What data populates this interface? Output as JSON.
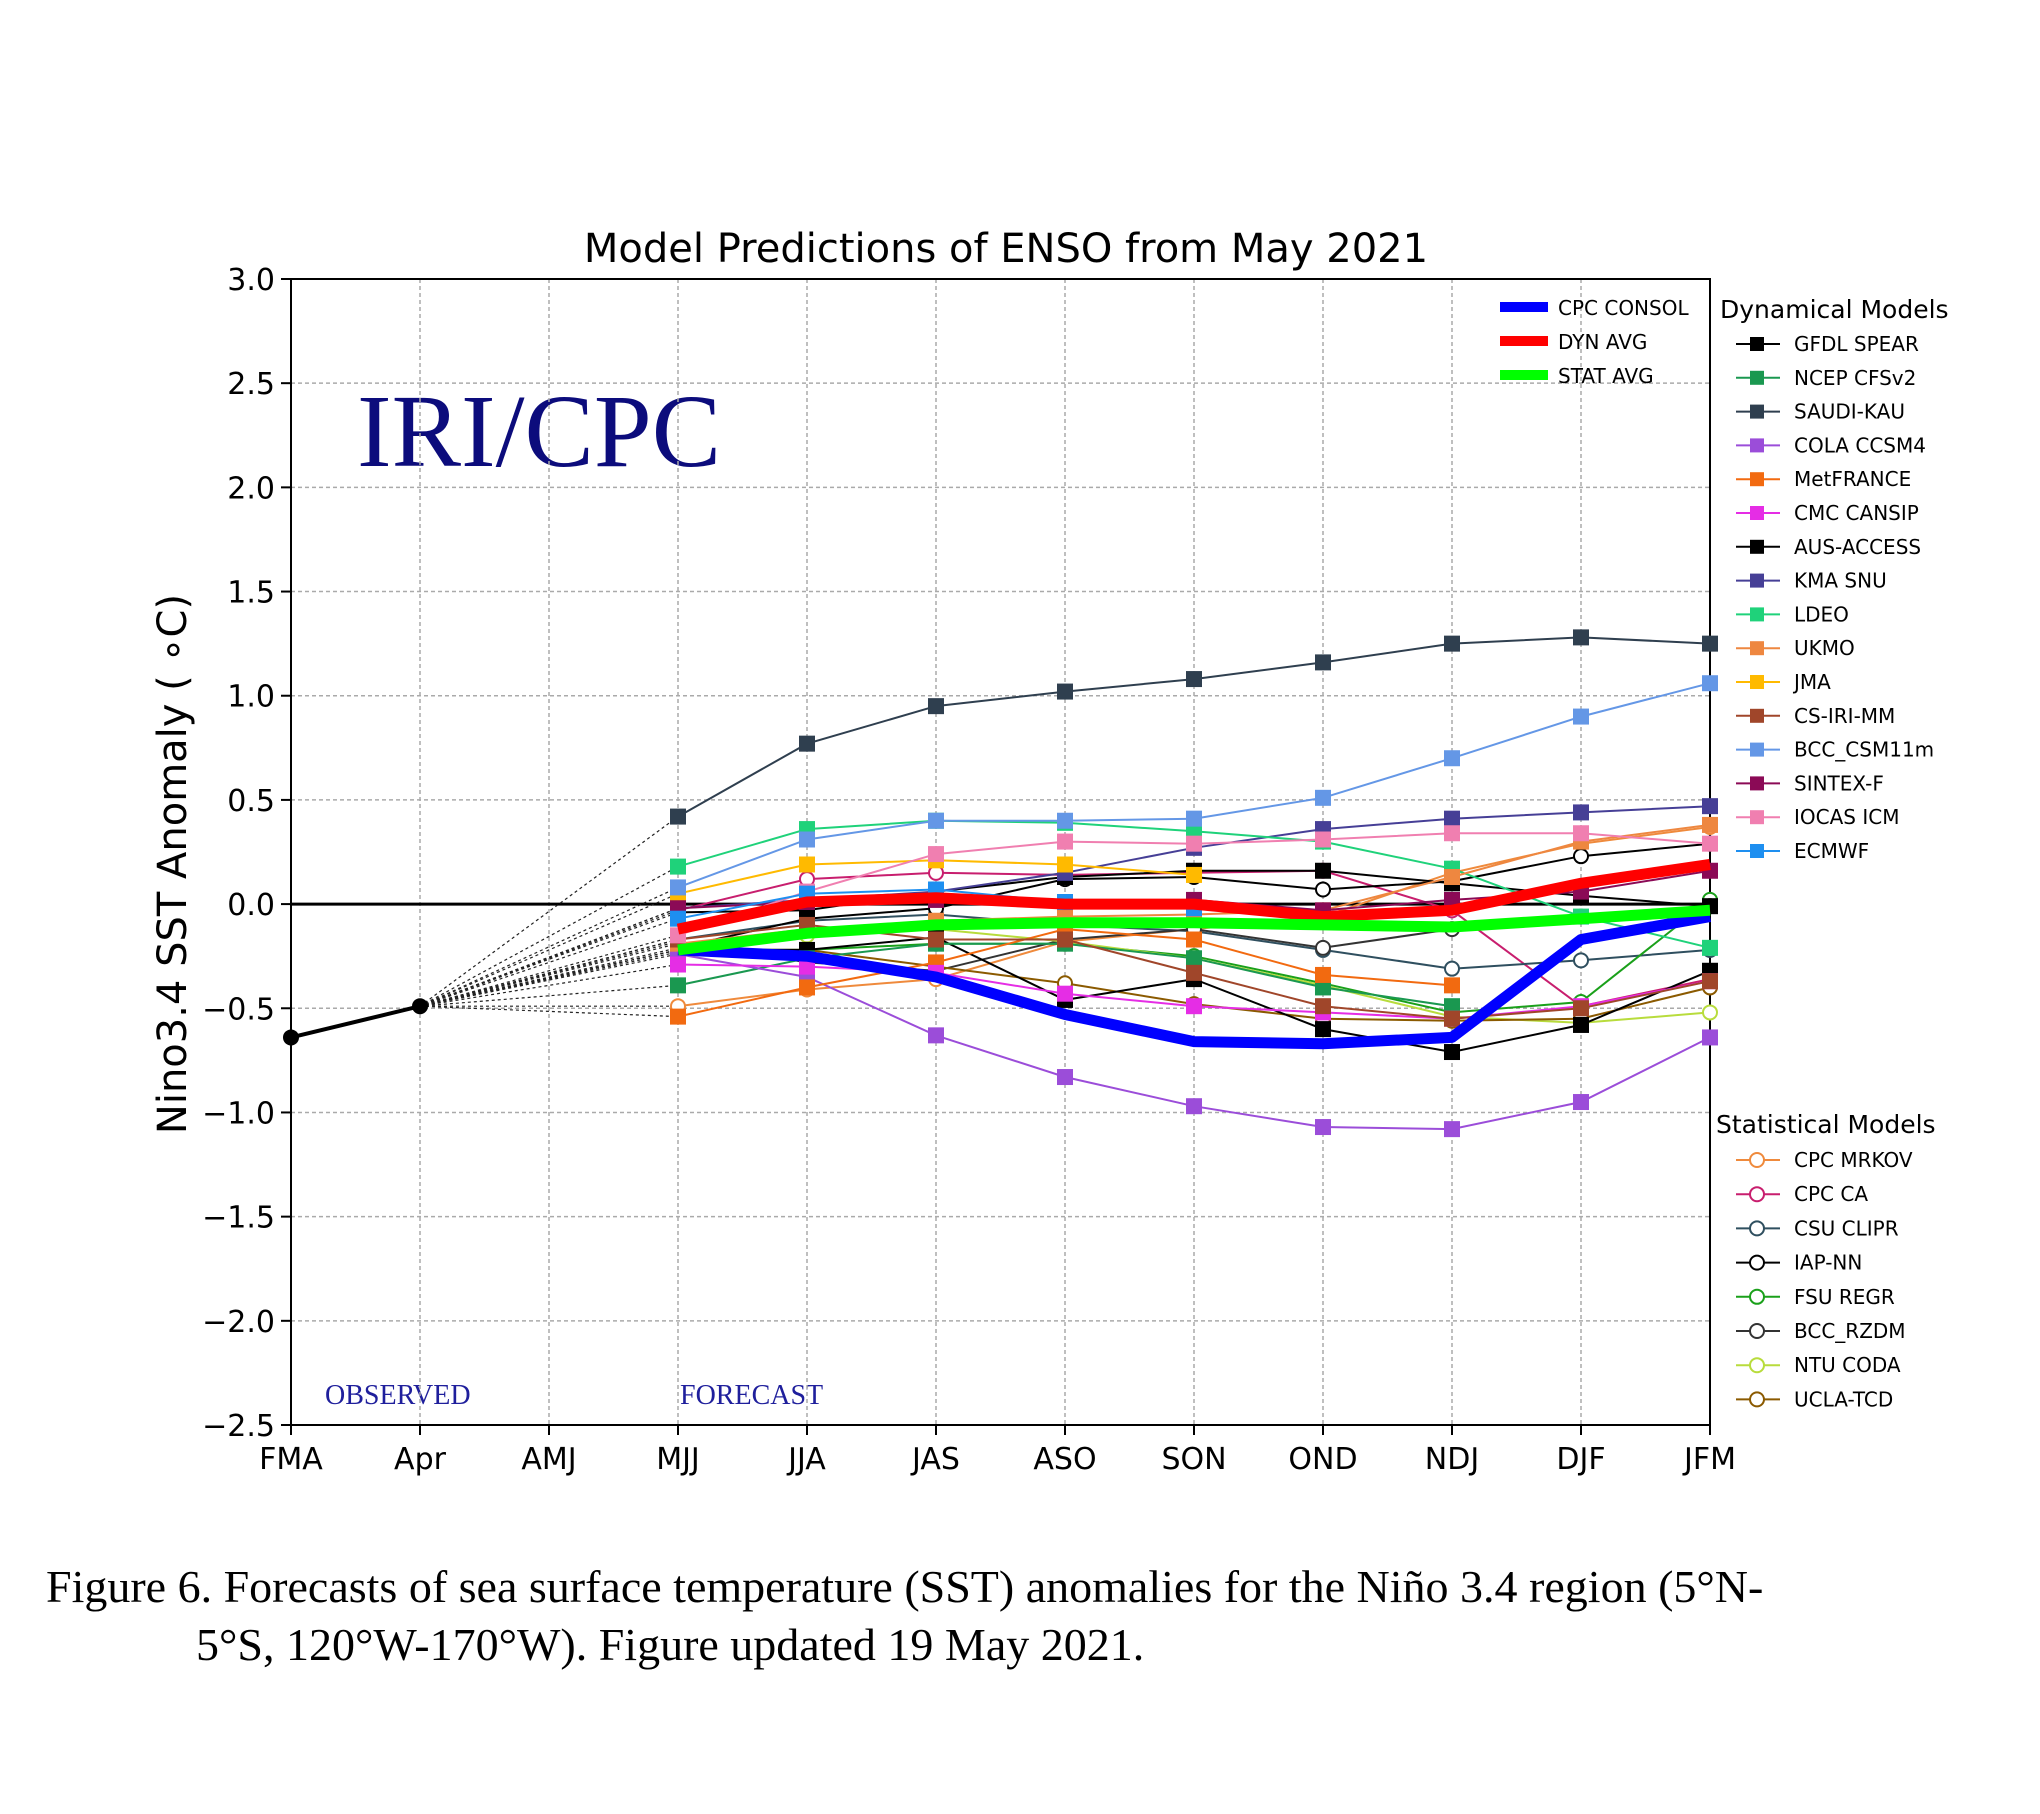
{
  "chart_data": {
    "type": "line",
    "title": "Model Predictions of ENSO from May 2021",
    "ylabel": "Nino3.4 SST Anomaly ( ∘C)",
    "xlabel": "",
    "categories": [
      "FMA",
      "Apr",
      "AMJ",
      "MJJ",
      "JJA",
      "JAS",
      "ASO",
      "SON",
      "OND",
      "NDJ",
      "DJF",
      "JFM"
    ],
    "ylim": [
      -2.5,
      3.0
    ],
    "yticks": [
      3.0,
      2.5,
      2.0,
      1.5,
      1.0,
      0.5,
      0.0,
      -0.5,
      -1.0,
      -1.5,
      -2.0,
      -2.5
    ],
    "ytick_labels": [
      "3.0",
      "2.5",
      "2.0",
      "1.5",
      "1.0",
      "0.5",
      "0.0",
      "−0.5",
      "−1.0",
      "−1.5",
      "−2.0",
      "−2.5"
    ],
    "grid": true,
    "watermark": "IRI/CPC",
    "annotations": {
      "observed": "OBSERVED",
      "forecast": "FORECAST"
    },
    "observed": {
      "categories": [
        "FMA",
        "Apr"
      ],
      "values": [
        -0.64,
        -0.49
      ],
      "color": "#000000"
    },
    "averages": [
      {
        "name": "CPC CONSOL",
        "color": "#0000ff",
        "values": [
          -0.22,
          -0.25,
          -0.35,
          -0.53,
          -0.66,
          -0.67,
          -0.64,
          -0.17,
          -0.06
        ]
      },
      {
        "name": "DYN AVG",
        "color": "#ff0000",
        "values": [
          -0.12,
          0.01,
          0.03,
          0.0,
          0.0,
          -0.06,
          -0.03,
          0.1,
          0.19
        ]
      },
      {
        "name": "STAT AVG",
        "color": "#00ff00",
        "values": [
          -0.22,
          -0.14,
          -0.1,
          -0.09,
          -0.09,
          -0.1,
          -0.11,
          -0.07,
          -0.03
        ]
      }
    ],
    "dynamical_title": "Dynamical Models",
    "statistical_title": "Statistical Models",
    "dynamical": [
      {
        "name": "GFDL SPEAR",
        "color": "#000000",
        "values": [
          -0.22,
          -0.22,
          -0.16,
          -0.46,
          -0.36,
          -0.6,
          -0.71,
          -0.58,
          -0.32
        ]
      },
      {
        "name": "NCEP CFSv2",
        "color": "#1a9850",
        "values": [
          -0.39,
          -0.26,
          -0.19,
          -0.19,
          -0.26,
          -0.4,
          -0.49,
          null,
          null
        ]
      },
      {
        "name": "SAUDI-KAU",
        "color": "#2f3f4f",
        "values": [
          0.42,
          0.77,
          0.95,
          1.02,
          1.08,
          1.16,
          1.25,
          1.28,
          1.25
        ]
      },
      {
        "name": "COLA CCSM4",
        "color": "#9b4dd9",
        "values": [
          -0.24,
          -0.35,
          -0.63,
          -0.83,
          -0.97,
          -1.07,
          -1.08,
          -0.95,
          -0.64
        ]
      },
      {
        "name": "MetFRANCE",
        "color": "#f26a10",
        "values": [
          -0.54,
          -0.4,
          -0.28,
          -0.12,
          -0.17,
          -0.34,
          -0.39,
          null,
          null
        ]
      },
      {
        "name": "CMC CANSIP",
        "color": "#e52de5",
        "values": [
          -0.29,
          -0.3,
          -0.33,
          -0.43,
          -0.49,
          -0.52,
          -0.55,
          -0.49,
          -0.37
        ]
      },
      {
        "name": "AUS-ACCESS",
        "color": "#000000",
        "values": [
          -0.04,
          -0.03,
          0.06,
          0.13,
          0.16,
          0.16,
          0.1,
          0.04,
          -0.01
        ]
      },
      {
        "name": "KMA SNU",
        "color": "#463f96",
        "values": [
          -0.02,
          0.02,
          0.06,
          0.15,
          0.27,
          0.36,
          0.41,
          0.44,
          0.47
        ]
      },
      {
        "name": "LDEO",
        "color": "#1fd27a",
        "values": [
          0.18,
          0.36,
          0.4,
          0.39,
          0.35,
          0.3,
          0.17,
          -0.06,
          -0.21
        ]
      },
      {
        "name": "UKMO",
        "color": "#ee8740",
        "values": [
          -0.19,
          -0.12,
          -0.08,
          -0.06,
          -0.05,
          -0.03,
          0.13,
          0.3,
          0.38
        ]
      },
      {
        "name": "JMA",
        "color": "#ffba00",
        "values": [
          0.05,
          0.19,
          0.21,
          0.19,
          0.14,
          null,
          null,
          null,
          null
        ]
      },
      {
        "name": "CS-IRI-MM",
        "color": "#a0462a",
        "values": [
          -0.17,
          -0.1,
          -0.17,
          -0.17,
          -0.33,
          -0.49,
          -0.55,
          -0.5,
          -0.37
        ]
      },
      {
        "name": "BCC_CSM11m",
        "color": "#6497e6",
        "values": [
          0.08,
          0.31,
          0.4,
          0.4,
          0.41,
          0.51,
          0.7,
          0.9,
          1.06
        ]
      },
      {
        "name": "SINTEX-F",
        "color": "#8b0a56",
        "values": [
          -0.02,
          0.01,
          0.02,
          0.01,
          0.02,
          -0.03,
          0.02,
          0.06,
          0.16
        ]
      },
      {
        "name": "IOCAS ICM",
        "color": "#f07fb0",
        "values": [
          -0.15,
          0.06,
          0.24,
          0.3,
          0.29,
          0.31,
          0.34,
          0.34,
          0.29
        ]
      },
      {
        "name": "ECMWF",
        "color": "#1e8ff0",
        "values": [
          -0.07,
          0.05,
          0.07,
          0.01,
          -0.02,
          null,
          null,
          null,
          null
        ]
      }
    ],
    "statistical": [
      {
        "name": "CPC MRKOV",
        "color": "#ef8a3c",
        "values": [
          -0.49,
          -0.41,
          -0.36,
          -0.18,
          -0.12,
          -0.06,
          0.15,
          0.29,
          0.37
        ]
      },
      {
        "name": "CPC CA",
        "color": "#c81e6e",
        "values": [
          -0.03,
          0.12,
          0.15,
          0.14,
          0.15,
          0.16,
          -0.03,
          -0.49,
          -0.36
        ]
      },
      {
        "name": "CSU CLIPR",
        "color": "#2f4f5f",
        "values": [
          -0.17,
          -0.08,
          -0.05,
          -0.1,
          -0.13,
          -0.22,
          -0.31,
          -0.27,
          -0.22
        ]
      },
      {
        "name": "IAP-NN",
        "color": "#000000",
        "values": [
          -0.21,
          -0.07,
          -0.02,
          0.12,
          0.13,
          0.07,
          0.11,
          0.23,
          0.29
        ]
      },
      {
        "name": "FSU REGR",
        "color": "#1aa01a",
        "values": [
          -0.22,
          -0.22,
          -0.19,
          -0.19,
          -0.25,
          -0.38,
          -0.52,
          -0.47,
          0.02
        ]
      },
      {
        "name": "BCC_RZDM",
        "color": "#333333",
        "values": [
          -0.18,
          -0.28,
          -0.32,
          -0.17,
          -0.12,
          -0.21,
          -0.12,
          -0.06,
          -0.01
        ]
      },
      {
        "name": "NTU CODA",
        "color": "#b8dc3c",
        "values": [
          -0.23,
          -0.15,
          -0.12,
          -0.18,
          -0.26,
          -0.39,
          -0.54,
          -0.57,
          -0.52
        ]
      },
      {
        "name": "UCLA-TCD",
        "color": "#8b5a00",
        "values": [
          -0.22,
          -0.22,
          -0.3,
          -0.38,
          -0.48,
          -0.55,
          -0.56,
          -0.55,
          -0.4
        ]
      }
    ]
  },
  "caption": {
    "line1": "Figure 6. Forecasts of sea surface temperature (SST) anomalies for the Niño 3.4 region (5°N-",
    "line2": "5°S, 120°W-170°W). Figure updated 19 May 2021."
  }
}
